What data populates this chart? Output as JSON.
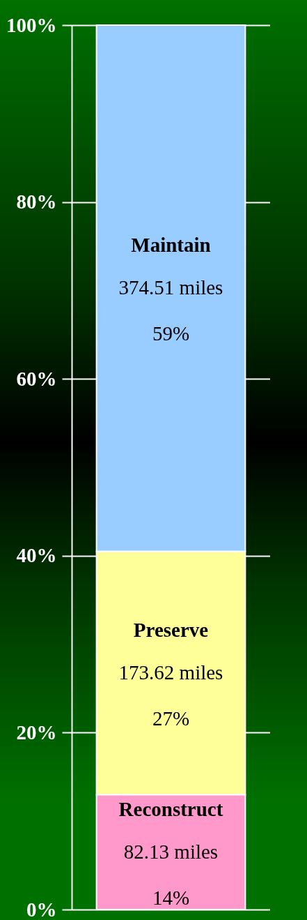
{
  "chart_data": {
    "type": "bar",
    "stacked": true,
    "categories": [
      null
    ],
    "series": [
      {
        "name": "Reconstruct",
        "color": "#ff99cc",
        "values": [
          13
        ]
      },
      {
        "name": "Preserve",
        "color": "#ffff99",
        "values": [
          27.5
        ]
      },
      {
        "name": "Maintain",
        "color": "#99ccff",
        "values": [
          59.5
        ]
      }
    ],
    "annotations": [
      "82.13 miles",
      "14%",
      "173.62 miles",
      "27%",
      "374.51 miles",
      "59%"
    ],
    "ylim": [
      0,
      100
    ],
    "yticks": [
      {
        "value": 0,
        "label": "0%"
      },
      {
        "value": 20,
        "label": "20%"
      },
      {
        "value": 40,
        "label": "40%"
      },
      {
        "value": 60,
        "label": "60%"
      },
      {
        "value": 80,
        "label": "80%"
      },
      {
        "value": 100,
        "label": "100%"
      }
    ],
    "grid": "y",
    "tick_labels": "y"
  }
}
